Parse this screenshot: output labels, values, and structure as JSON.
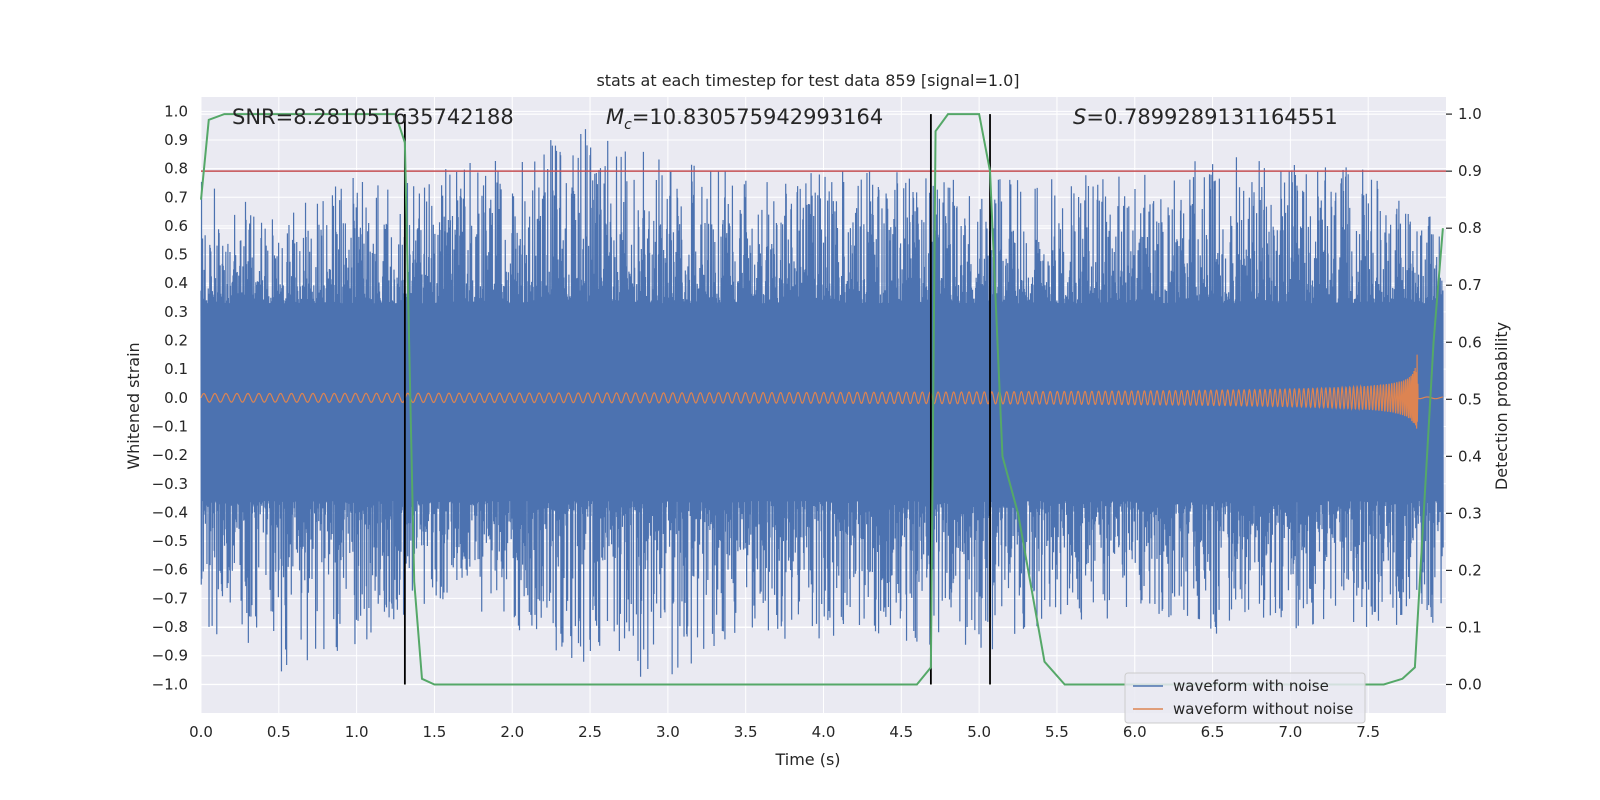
{
  "chart_data": {
    "type": "line",
    "title": "stats at each timestep for test data 859 [signal=1.0]",
    "xlabel": "Time (s)",
    "ylabel_left": "Whitened strain",
    "ylabel_right": "Detection probability",
    "xlim": [
      0.0,
      8.0
    ],
    "ylim_left": [
      -1.1,
      1.05
    ],
    "ylim_right": [
      -0.05,
      1.03
    ],
    "xticks": [
      "0.0",
      "0.5",
      "1.0",
      "1.5",
      "2.0",
      "2.5",
      "3.0",
      "3.5",
      "4.0",
      "4.5",
      "5.0",
      "5.5",
      "6.0",
      "6.5",
      "7.0",
      "7.5"
    ],
    "yticks_left": [
      "1.0",
      "0.9",
      "0.8",
      "0.7",
      "0.6",
      "0.5",
      "0.4",
      "0.3",
      "0.2",
      "0.1",
      "0.0",
      "-0.1",
      "-0.2",
      "-0.3",
      "-0.4",
      "-0.5",
      "-0.6",
      "-0.7",
      "-0.8",
      "-0.9",
      "-1.0"
    ],
    "yticks_right": [
      "0.0",
      "0.1",
      "0.2",
      "0.3",
      "0.4",
      "0.5",
      "0.6",
      "0.7",
      "0.8",
      "0.9",
      "1.0"
    ],
    "annotations": {
      "snr": "SNR=8.281051635742188",
      "mc_symbol": "M",
      "mc_sub": "c",
      "mc_value": "=10.830575942993164",
      "s_symbol": "S",
      "s_value": "=0.7899289131164551"
    },
    "threshold": {
      "value": 0.9,
      "color": "#c44e52"
    },
    "vertical_lines": [
      1.31,
      4.69,
      5.07
    ],
    "series": [
      {
        "name": "waveform with noise",
        "color": "#4c72b0",
        "description_of_values": "whitened noisy strain, amplitude envelope",
        "envelope_x": [
          0.0,
          0.5,
          1.0,
          1.5,
          2.0,
          2.5,
          3.0,
          3.5,
          4.0,
          4.5,
          5.0,
          5.5,
          6.0,
          6.5,
          7.0,
          7.5,
          7.98
        ],
        "envelope_max": [
          0.78,
          0.62,
          0.8,
          0.8,
          0.85,
          0.95,
          0.83,
          0.78,
          0.8,
          0.79,
          0.75,
          0.8,
          0.78,
          0.85,
          0.82,
          0.8,
          0.6
        ],
        "envelope_min": [
          -0.82,
          -0.97,
          -0.88,
          -0.7,
          -0.8,
          -0.95,
          -1.0,
          -0.85,
          -0.84,
          -0.85,
          -0.9,
          -0.8,
          -0.77,
          -0.83,
          -0.81,
          -0.8,
          -0.8
        ]
      },
      {
        "name": "waveform without noise",
        "color": "#dd8452",
        "chirp_start_amp": 0.015,
        "chirp_peak_amp": 0.37,
        "merger_time": 7.82
      },
      {
        "name": "detection probability",
        "color": "#55a868",
        "axis": "right",
        "x": [
          0.0,
          0.05,
          0.15,
          1.25,
          1.31,
          1.37,
          1.42,
          1.5,
          2.5,
          4.6,
          4.69,
          4.72,
          4.8,
          5.0,
          5.07,
          5.15,
          5.25,
          5.42,
          5.55,
          7.6,
          7.72,
          7.8,
          7.92,
          7.98
        ],
        "y": [
          0.85,
          0.99,
          1.0,
          1.0,
          0.95,
          0.18,
          0.01,
          0.0,
          0.0,
          0.0,
          0.03,
          0.97,
          1.0,
          1.0,
          0.9,
          0.4,
          0.3,
          0.04,
          0.0,
          0.0,
          0.01,
          0.03,
          0.6,
          0.8
        ]
      }
    ],
    "legend": {
      "position": "lower-right",
      "entries": [
        "waveform with noise",
        "waveform without noise"
      ]
    },
    "grid": true,
    "background_color": "#eaeaf2"
  }
}
